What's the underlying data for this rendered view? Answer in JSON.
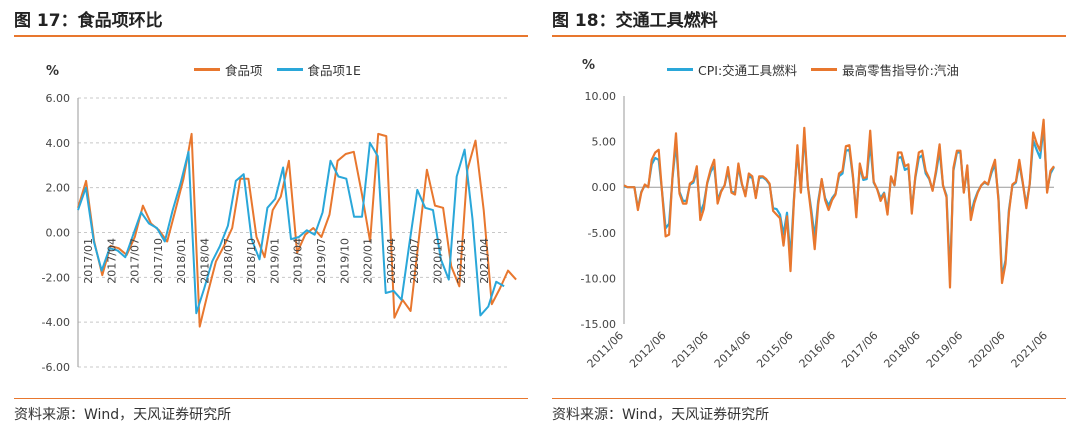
{
  "left": {
    "title": "图 17：食品项环比",
    "source": "资料来源：Wind，天风证券研究所",
    "unit": "%",
    "chart_data": {
      "type": "line",
      "ylim": [
        -6,
        6
      ],
      "yticks": [
        "6.00",
        "4.00",
        "2.00",
        "0.00",
        "-2.00",
        "-4.00",
        "-6.00"
      ],
      "ytick_values": [
        6,
        4,
        2,
        0,
        -2,
        -4,
        -6
      ],
      "x_labels": [
        "2017/01",
        "2017/04",
        "2017/07",
        "2017/10",
        "2018/01",
        "2018/04",
        "2018/07",
        "2018/10",
        "2019/01",
        "2019/04",
        "2019/07",
        "2019/10",
        "2020/01",
        "2020/04",
        "2020/07",
        "2020/10",
        "2021/01",
        "2021/04"
      ],
      "grid": true,
      "legend": "top",
      "series": [
        {
          "name": "食品项",
          "color": "#e8772e",
          "values": [
            1.1,
            2.3,
            -0.4,
            -1.9,
            -0.6,
            -0.7,
            -1.0,
            -0.2,
            1.2,
            0.4,
            0.1,
            -0.4,
            1.0,
            2.4,
            4.4,
            -4.2,
            -2.7,
            -1.3,
            -0.6,
            0.2,
            2.4,
            2.4,
            -0.2,
            -1.1,
            1.0,
            1.6,
            3.2,
            -0.9,
            -0.1,
            0.2,
            -0.2,
            0.8,
            3.2,
            3.5,
            3.6,
            1.7,
            -0.4,
            4.4,
            4.3,
            -3.8,
            -3.0,
            -3.5,
            -0.3,
            2.8,
            1.2,
            1.1,
            -1.5,
            -2.4,
            2.8,
            4.1,
            1.0,
            -3.2,
            -2.5,
            -1.7,
            -2.1
          ],
          "end_x": 53.0
        },
        {
          "name": "食品项1E",
          "color": "#2aa7d9",
          "values": [
            1.0,
            2.0,
            -0.4,
            -1.7,
            -0.7,
            -0.8,
            -1.1,
            -0.1,
            0.9,
            0.4,
            0.2,
            -0.4,
            1.0,
            2.2,
            3.6,
            -3.6,
            -2.5,
            -1.3,
            -0.6,
            0.3,
            2.3,
            2.6,
            -0.3,
            -1.2,
            1.1,
            1.5,
            2.9,
            -0.3,
            -0.2,
            0.1,
            -0.1,
            0.9,
            3.2,
            2.5,
            2.4,
            0.7,
            0.7,
            4.0,
            3.4,
            -2.7,
            -2.6,
            -3.0,
            -0.5,
            1.9,
            1.1,
            1.0,
            -1.2,
            -2.1,
            2.5,
            3.7,
            0.6,
            -3.7,
            -3.3,
            -2.2,
            -2.4
          ],
          "end_x": 54.5
        }
      ]
    }
  },
  "right": {
    "title": "图 18：交通工具燃料",
    "source": "资料来源：Wind，天风证券研究所",
    "unit": "%",
    "chart_data": {
      "type": "line",
      "ylim": [
        -15,
        10
      ],
      "yticks": [
        "10.00",
        "5.00",
        "0.00",
        "-5.00",
        "-10.00",
        "-15.00"
      ],
      "ytick_values": [
        10,
        5,
        0,
        -5,
        -10,
        -15
      ],
      "x_labels": [
        "2011/06",
        "2012/06",
        "2013/06",
        "2014/06",
        "2015/06",
        "2016/06",
        "2017/06",
        "2018/06",
        "2019/06",
        "2020/06",
        "2021/06"
      ],
      "grid": false,
      "legend": "top",
      "series": [
        {
          "name": "CPI:交通工具燃料",
          "color": "#2aa7d9",
          "values": [
            0.1,
            0.0,
            0.0,
            0.0,
            -2.3,
            -0.5,
            0.2,
            0.1,
            2.5,
            3.2,
            3.0,
            -0.5,
            -4.5,
            -4.0,
            1.0,
            4.8,
            -0.5,
            -1.5,
            -1.5,
            0.3,
            0.5,
            1.8,
            -2.8,
            -1.8,
            0.4,
            1.7,
            2.3,
            -1.4,
            -0.4,
            0.2,
            1.8,
            -0.5,
            -0.6,
            2.2,
            0.3,
            -0.8,
            1.2,
            1.0,
            -1.0,
            1.0,
            1.1,
            0.8,
            0.3,
            -2.3,
            -2.4,
            -3.0,
            -5.2,
            -2.8,
            -7.8,
            -1.3,
            4.0,
            -0.5,
            5.8,
            0.2,
            -2.5,
            -5.5,
            -1.5,
            0.8,
            -1.2,
            -2.0,
            -1.2,
            -0.7,
            1.2,
            1.5,
            4.0,
            4.1,
            1.1,
            -2.8,
            2.2,
            0.8,
            0.9,
            4.8,
            0.5,
            -0.2,
            -1.2,
            -0.6,
            -2.5,
            1.0,
            0.2,
            3.2,
            3.3,
            1.9,
            2.1,
            -2.4,
            1.0,
            3.2,
            3.5,
            1.5,
            0.9,
            -0.3,
            1.6,
            4.0,
            0.2,
            -0.9,
            -9.8,
            1.8,
            3.8,
            3.8,
            -0.5,
            1.9,
            -3.0,
            -1.5,
            -0.5,
            0.2,
            0.5,
            0.3,
            1.6,
            2.5,
            -1.2,
            -9.8,
            -8.0,
            -2.5,
            0.2,
            0.5,
            2.6,
            0.4,
            -1.9,
            0.3,
            5.1,
            4.1,
            3.2,
            6.6,
            -0.4,
            1.5,
            2.2
          ],
          "end_x": 124
        },
        {
          "name": "最高零售指导价:汽油",
          "color": "#e8772e",
          "values": [
            0.2,
            0.0,
            0.0,
            0.0,
            -2.5,
            -0.6,
            0.3,
            0.0,
            3.0,
            3.8,
            4.1,
            -0.6,
            -5.4,
            -5.2,
            1.2,
            5.9,
            -0.7,
            -1.8,
            -1.8,
            0.4,
            0.7,
            2.3,
            -3.6,
            -2.4,
            0.5,
            2.0,
            3.0,
            -1.8,
            -0.5,
            0.2,
            2.2,
            -0.6,
            -0.8,
            2.6,
            0.4,
            -1.0,
            1.5,
            1.2,
            -1.2,
            1.2,
            1.2,
            0.9,
            0.4,
            -2.6,
            -3.0,
            -3.4,
            -6.4,
            -3.2,
            -9.2,
            -1.6,
            4.6,
            -0.6,
            6.5,
            0.2,
            -3.0,
            -6.8,
            -1.9,
            0.9,
            -1.4,
            -2.5,
            -1.4,
            -0.8,
            1.5,
            1.8,
            4.5,
            4.6,
            1.3,
            -3.3,
            2.6,
            1.0,
            1.1,
            6.2,
            0.6,
            -0.2,
            -1.5,
            -0.7,
            -3.0,
            1.2,
            0.2,
            3.8,
            3.8,
            2.3,
            2.5,
            -2.9,
            1.2,
            3.8,
            4.0,
            1.8,
            1.0,
            -0.4,
            1.9,
            4.7,
            0.2,
            -1.1,
            -11.0,
            2.1,
            4.0,
            4.0,
            -0.6,
            2.4,
            -3.6,
            -1.8,
            -0.6,
            0.2,
            0.6,
            0.3,
            1.9,
            3.0,
            -1.5,
            -10.5,
            -8.4,
            -2.8,
            0.3,
            0.6,
            3.0,
            0.5,
            -2.3,
            0.4,
            6.0,
            4.8,
            4.0,
            7.4,
            -0.6,
            1.8,
            2.3
          ],
          "end_x": 124
        }
      ]
    }
  }
}
